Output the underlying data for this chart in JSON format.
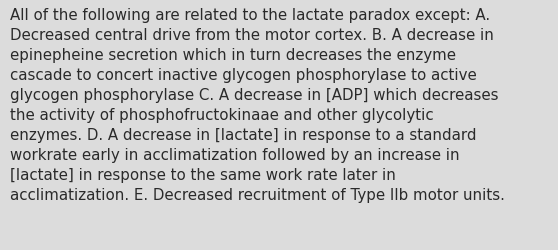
{
  "text": "All of the following are related to the lactate paradox except: A.\nDecreased central drive from the motor cortex. B. A decrease in\nepinepheine secretion which in turn decreases the enzyme\ncascade to concert inactive glycogen phosphorylase to active\nglycogen phosphorylase C. A decrease in [ADP] which decreases\nthe activity of phosphofructokinaae and other glycolytic\nenzymes. D. A decrease in [lactate] in response to a standard\nworkrate early in acclimatization followed by an increase in\n[lactate] in response to the same work rate later in\nacclimatization. E. Decreased recruitment of Type IIb motor units.",
  "background_color": "#dcdcdc",
  "text_color": "#2a2a2a",
  "font_size": 10.8,
  "fig_width": 5.58,
  "fig_height": 2.51
}
